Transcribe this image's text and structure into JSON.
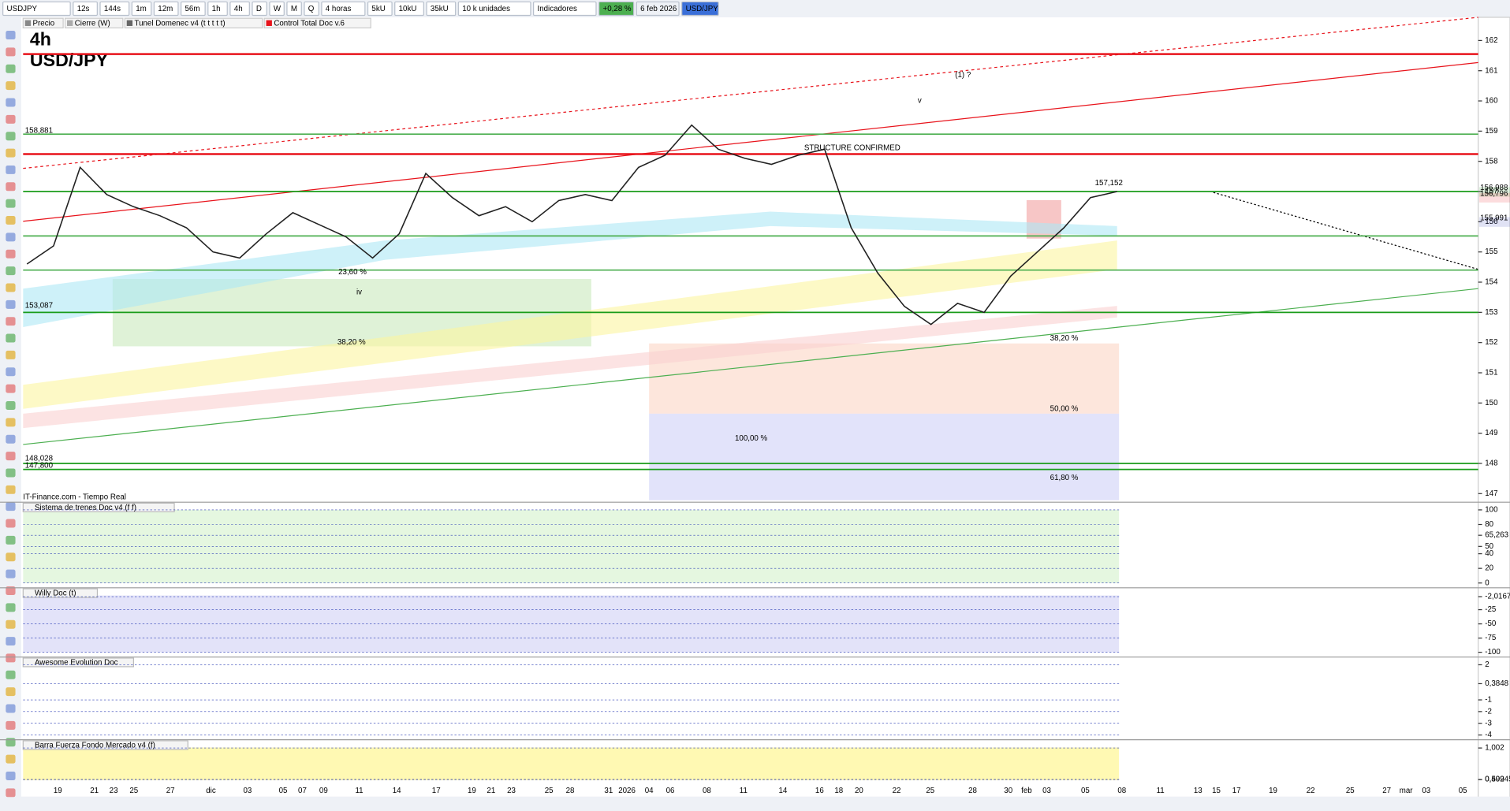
{
  "toolbar": {
    "symbol": "USDJPY",
    "buttons": [
      "12s",
      "144s",
      "1m",
      "12m",
      "56m",
      "1h",
      "4h",
      "D",
      "W",
      "M",
      "Q",
      "4 horas",
      "5kU",
      "10kU",
      "35kU",
      "10 k unidades",
      "Indicadores"
    ],
    "change": "+0,28 %",
    "date": "6 feb 2026",
    "pair": "USD/JPY"
  },
  "legend": [
    "Precio",
    "Cierre (W)",
    "Tunel Domenec v4 (t t t t t)",
    "Control Total Doc v.6"
  ],
  "chart": {
    "timeframe": "4h",
    "symbol": "USD/JPY",
    "source": "IT-Finance.com - Tiempo Real",
    "ylim": [
      146.78,
      162.64
    ],
    "yticks": [
      147,
      148,
      149,
      150,
      151,
      152,
      153,
      154,
      155,
      156,
      157,
      158,
      159,
      160,
      161,
      162
    ],
    "levels": [
      {
        "value": 161.55,
        "color": "#e8131b"
      },
      {
        "value": 158.9,
        "color": "#4caf50"
      },
      {
        "value": 158.24,
        "color": "#e8131b"
      },
      {
        "value": 157.0,
        "color": "#1a9c1a"
      },
      {
        "value": 155.53,
        "color": "#4caf50"
      },
      {
        "value": 154.4,
        "color": "#4caf50"
      },
      {
        "value": 153.0,
        "color": "#1a9c1a"
      },
      {
        "value": 148.0,
        "color": "#1a9c1a"
      },
      {
        "value": 147.8,
        "color": "#1a9c1a"
      }
    ],
    "price_labels": [
      {
        "value": 158.881,
        "label": "158,881"
      },
      {
        "value": 157.152,
        "label": "157,152"
      },
      {
        "value": 156.988,
        "label": "156,988"
      },
      {
        "value": 156.796,
        "label": "156,796"
      },
      {
        "value": 155.991,
        "label": "155,991"
      },
      {
        "value": 153.087,
        "label": "153,087"
      },
      {
        "value": 148.028,
        "label": "148,028"
      },
      {
        "value": 147.8,
        "label": "147,800"
      }
    ],
    "annotations": [
      "(1) ?",
      "v",
      "iv",
      "23,60 %",
      "38,20 %",
      "38,20 %",
      "50,00 %",
      "61,80 %",
      "100,00 %",
      "STRUCTURE CONFIRMED"
    ],
    "price": [
      154.6,
      155.2,
      157.8,
      156.9,
      156.5,
      156.2,
      155.8,
      155.0,
      154.8,
      155.6,
      156.3,
      155.9,
      155.5,
      154.8,
      155.6,
      157.6,
      156.8,
      156.2,
      156.5,
      156.0,
      156.7,
      156.9,
      156.7,
      157.8,
      158.2,
      159.2,
      158.4,
      158.1,
      157.9,
      158.2,
      158.4,
      155.8,
      154.3,
      153.2,
      152.6,
      153.3,
      153.0,
      154.2,
      155.0,
      155.8,
      156.8,
      157.0
    ],
    "dates": [
      "19",
      "21",
      "23",
      "25",
      "27",
      "dic",
      "03",
      "05",
      "07",
      "09",
      "11",
      "14",
      "17",
      "19",
      "21",
      "23",
      "25",
      "28",
      "31",
      "2026",
      "04",
      "06",
      "08",
      "11",
      "14",
      "16",
      "18",
      "20",
      "22",
      "25",
      "28",
      "30",
      "feb",
      "03",
      "05",
      "08",
      "11",
      "13",
      "15",
      "17",
      "19",
      "22",
      "25",
      "27",
      "mar",
      "03",
      "05"
    ]
  },
  "panels": [
    {
      "title": "Sistema de trenes Doc v4 (f f)",
      "ylim": [
        0,
        100
      ],
      "yticks": [
        100,
        80,
        {
          "value": 65.263,
          "label": "65,263"
        },
        50,
        40,
        20,
        0
      ]
    },
    {
      "title": "Willy Doc (t)",
      "ylim": [
        -100,
        0
      ],
      "yticks": [
        {
          "value": -2.0167,
          "label": "-2,0167"
        },
        -25,
        -50,
        -75,
        -100
      ]
    },
    {
      "title": "Awesome Evolution Doc",
      "ylim": [
        -4,
        2
      ],
      "yticks": [
        2,
        {
          "value": 0.3848,
          "label": "0,3848"
        },
        -1,
        -2,
        -3,
        -4
      ]
    },
    {
      "title": "Barra Fuerza Fondo Mercado v4 (f)",
      "ylim": [
        0.49,
        1.01
      ],
      "yticks": [
        {
          "value": 1.002,
          "label": "1,002"
        },
        {
          "value": 0.502,
          "label": "0,502"
        },
        {
          "value": 0.49945,
          "label": "0,49945"
        }
      ]
    }
  ]
}
